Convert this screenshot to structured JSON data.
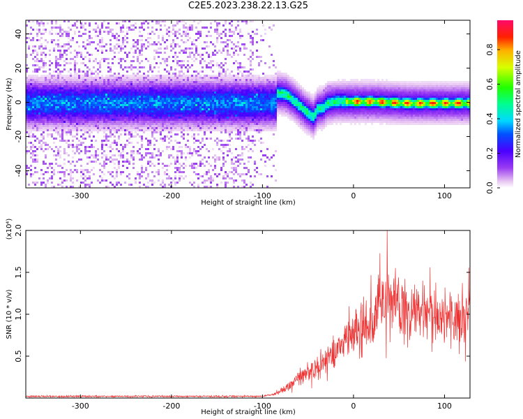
{
  "title": "C2E5.2023.238.22.13.G25",
  "chart_data": [
    {
      "type": "heatmap",
      "name": "spectrogram",
      "xlabel": "Height of straight line (km)",
      "ylabel": "Frequency (Hz)",
      "xlim": [
        -360,
        128
      ],
      "ylim": [
        -50,
        48
      ],
      "xticks": [
        -300,
        -200,
        -100,
        0,
        100
      ],
      "yticks": [
        -40,
        -20,
        0,
        20,
        40
      ],
      "colorbar": {
        "label": "Normalized spectral amplitude",
        "range": [
          0.0,
          0.97
        ],
        "ticks": [
          "0.0",
          "0.2",
          "0.4",
          "0.6",
          "0.8"
        ],
        "tick_values": [
          0.0,
          0.2,
          0.4,
          0.6,
          0.8
        ]
      },
      "features": {
        "noise_region_x": [
          -360,
          -85
        ],
        "noise_band_center_hz": 0,
        "noise_band_halfwidth_hz": 10,
        "transition_points": [
          [
            -85,
            6
          ],
          [
            -75,
            5
          ],
          [
            -65,
            1
          ],
          [
            -55,
            -4
          ],
          [
            -45,
            -8
          ],
          [
            -40,
            -3
          ],
          [
            -35,
            -3
          ],
          [
            -30,
            0
          ],
          [
            -20,
            1
          ],
          [
            0,
            1
          ],
          [
            20,
            1
          ],
          [
            60,
            0
          ],
          [
            100,
            0
          ],
          [
            128,
            0
          ]
        ],
        "signal_peak_x": [
          -10,
          128
        ],
        "signal_peak_amplitude": 0.95
      }
    },
    {
      "type": "line",
      "name": "snr",
      "xlabel": "Height of straight line (km)",
      "ylabel": "SNR (10 * v/v)",
      "scale_label": "(x10⁴)",
      "xlim": [
        -360,
        128
      ],
      "ylim": [
        0,
        2.0
      ],
      "xticks": [
        -300,
        -200,
        -100,
        0,
        100
      ],
      "yticks": [
        0.5,
        1.0,
        1.5,
        2.0
      ],
      "ytick_labels": [
        "0.5",
        "1.0",
        "1.5",
        "2.0"
      ],
      "series_color": "#ef3030",
      "envelope": {
        "x": [
          -360,
          -100,
          -85,
          -70,
          -60,
          -50,
          -40,
          -30,
          -20,
          -10,
          0,
          10,
          20,
          30,
          40,
          50,
          60,
          70,
          80,
          90,
          100,
          110,
          120,
          128
        ],
        "y": [
          0.02,
          0.02,
          0.05,
          0.15,
          0.25,
          0.32,
          0.4,
          0.45,
          0.55,
          0.65,
          0.75,
          0.85,
          0.95,
          1.05,
          1.15,
          1.1,
          1.1,
          1.05,
          1.0,
          1.0,
          0.95,
          0.95,
          1.0,
          1.05
        ]
      },
      "max_spike": {
        "x": 37,
        "y": 2.0
      }
    }
  ]
}
